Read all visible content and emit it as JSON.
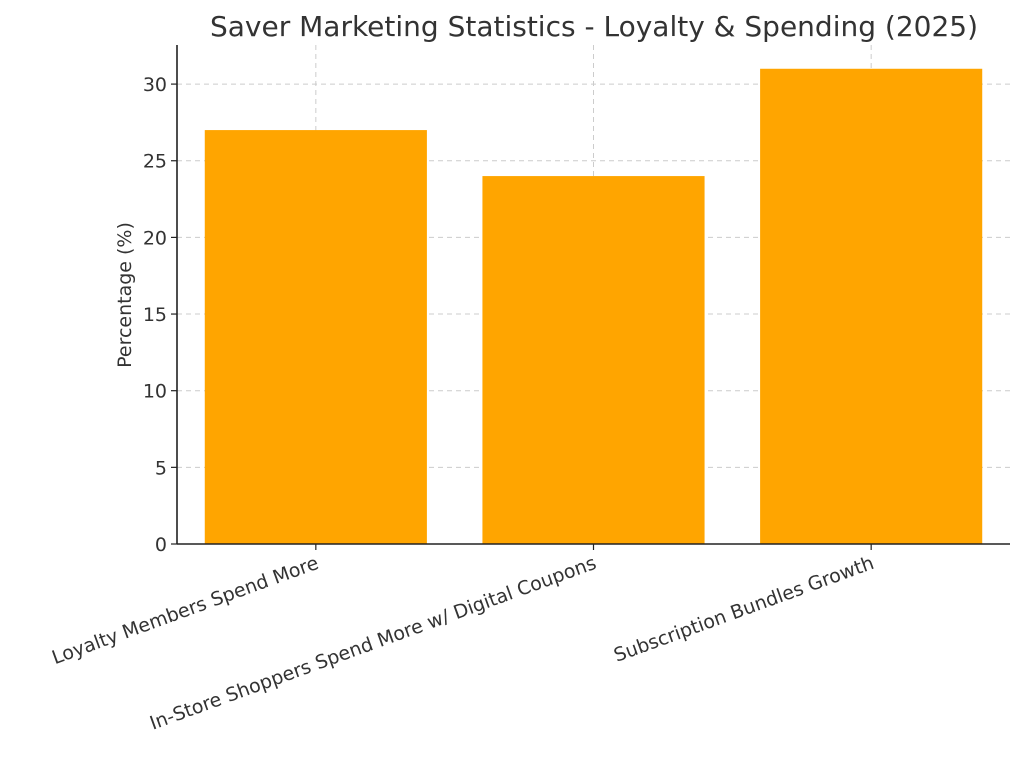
{
  "chart_data": {
    "type": "bar",
    "title": "Saver Marketing Statistics - Loyalty & Spending (2025)",
    "xlabel": "",
    "ylabel": "Percentage (%)",
    "categories": [
      "Loyalty Members Spend More",
      "In-Store Shoppers Spend More w/ Digital Coupons",
      "Subscription Bundles Growth"
    ],
    "values": [
      27,
      24,
      31
    ],
    "ylim": [
      0,
      32.55
    ],
    "yticks": [
      0,
      5,
      10,
      15,
      20,
      25,
      30
    ],
    "grid": true,
    "bar_color": "#FFA500",
    "legend": null
  }
}
